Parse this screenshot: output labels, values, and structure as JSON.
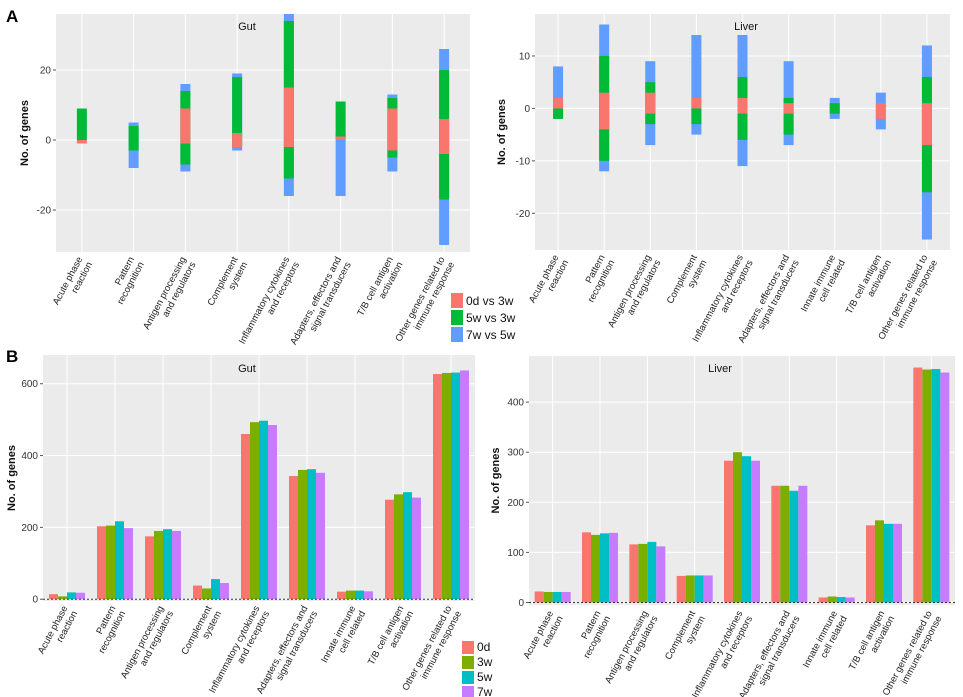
{
  "panels": {
    "a": "A",
    "b": "B"
  },
  "chart_data": [
    {
      "type": "bar",
      "subtype": "range",
      "title": "Gut",
      "ylabel": "No. of genes",
      "ylim": [
        -32,
        36
      ],
      "yticks": [
        -20,
        0,
        20
      ],
      "categories": [
        "Acute phase\nreaction",
        "Pattern\nrecognition",
        "Antigen processing\nand regulators",
        "Complement\nsystem",
        "Inflammatory cytokines\nand receptors",
        "Adapters, effectors and\nsignal transducers",
        "T/B cell antigen\nactivation",
        "Other genes related to\nimmune response"
      ],
      "legend": [
        "0d vs 3w",
        "5w vs 3w",
        "7w vs 5w"
      ],
      "colors": [
        "#f8766d",
        "#00ba38",
        "#619cff"
      ],
      "series": [
        {
          "name": "0d vs 3w",
          "ranges": [
            [
              -1,
              0
            ],
            null,
            [
              -1,
              9
            ],
            [
              -2,
              2
            ],
            [
              -2,
              15
            ],
            [
              0,
              1
            ],
            [
              -3,
              9
            ],
            [
              -4,
              6
            ]
          ]
        },
        {
          "name": "5w vs 3w",
          "ranges": [
            [
              0,
              9
            ],
            [
              -3,
              4
            ],
            [
              -7,
              14
            ],
            [
              -2,
              18
            ],
            [
              -11,
              34
            ],
            [
              0,
              11
            ],
            [
              -5,
              12
            ],
            [
              -17,
              20
            ]
          ]
        },
        {
          "name": "7w vs 5w",
          "ranges": [
            null,
            [
              -8,
              5
            ],
            [
              -9,
              16
            ],
            [
              -3,
              19
            ],
            [
              -16,
              36
            ],
            [
              -16,
              2
            ],
            [
              -9,
              13
            ],
            [
              -30,
              26
            ]
          ]
        }
      ]
    },
    {
      "type": "bar",
      "subtype": "range",
      "title": "Liver",
      "ylabel": "No. of genes",
      "ylim": [
        -27,
        18
      ],
      "yticks": [
        -20,
        -10,
        0,
        10
      ],
      "categories": [
        "Acute phase\nreaction",
        "Pattern\nrecognition",
        "Antigen processing\nand regulators",
        "Complement\nsystem",
        "Inflammatory cytokines\nand receptors",
        "Adapters, effectors and\nsignal transducers",
        "Innate immune\ncell related",
        "T/B cell antigen\nactivation",
        "Other genes related to\nimmune response"
      ],
      "legend": [
        "0d vs 3w",
        "5w vs 3w",
        "7w vs 5w"
      ],
      "colors": [
        "#f8766d",
        "#00ba38",
        "#619cff"
      ],
      "series": [
        {
          "name": "0d vs 3w",
          "ranges": [
            [
              0,
              2
            ],
            [
              -4,
              3
            ],
            [
              -1,
              3
            ],
            [
              0,
              2
            ],
            [
              -1,
              2
            ],
            [
              -1,
              1
            ],
            null,
            [
              -2,
              1
            ],
            [
              -7,
              1
            ]
          ]
        },
        {
          "name": "5w vs 3w",
          "ranges": [
            [
              -2,
              0
            ],
            [
              -10,
              10
            ],
            [
              -3,
              5
            ],
            [
              -3,
              0
            ],
            [
              -6,
              6
            ],
            [
              -5,
              2
            ],
            [
              -1,
              1
            ],
            null,
            [
              -16,
              6
            ]
          ]
        },
        {
          "name": "7w vs 5w",
          "ranges": [
            [
              -2,
              8
            ],
            [
              -12,
              16
            ],
            [
              -7,
              9
            ],
            [
              -5,
              14
            ],
            [
              -11,
              14
            ],
            [
              -7,
              9
            ],
            [
              -2,
              2
            ],
            [
              -4,
              3
            ],
            [
              -25,
              12
            ]
          ]
        }
      ]
    },
    {
      "type": "bar",
      "title": "Gut",
      "ylabel": "No. of genes",
      "ylim": [
        -5,
        680
      ],
      "yticks": [
        0,
        200,
        400,
        600
      ],
      "categories": [
        "Acute phase\nreaction",
        "Pattern\nrecognition",
        "Antigen processing\nand regulators",
        "Complement\nsystem",
        "Inflammatory cytokines\nand receptors",
        "Adapters, effectors and\nsignal transducers",
        "Innate immune\ncell related",
        "T/B cell antigen\nactivation",
        "Other genes related to\nimmune response"
      ],
      "legend": [
        "0d",
        "3w",
        "5w",
        "7w"
      ],
      "colors": [
        "#f8766d",
        "#7cae00",
        "#00bfc4",
        "#c77cff"
      ],
      "series": [
        {
          "name": "0d",
          "values": [
            14,
            203,
            175,
            38,
            460,
            343,
            21,
            277,
            627
          ]
        },
        {
          "name": "3w",
          "values": [
            8,
            205,
            190,
            30,
            493,
            360,
            24,
            292,
            630
          ]
        },
        {
          "name": "5w",
          "values": [
            19,
            217,
            195,
            56,
            497,
            362,
            24,
            298,
            631
          ]
        },
        {
          "name": "7w",
          "values": [
            18,
            198,
            190,
            45,
            485,
            352,
            22,
            283,
            637
          ]
        }
      ]
    },
    {
      "type": "bar",
      "title": "Liver",
      "ylabel": "No. of genes",
      "ylim": [
        -5,
        492
      ],
      "yticks": [
        0,
        100,
        200,
        300,
        400
      ],
      "categories": [
        "Acute phase\nreaction",
        "Pattern\nrecognition",
        "Antigen processing\nand regulators",
        "Complement\nsystem",
        "Inflammatory cytokines\nand receptors",
        "Adapters, effectors and\nsignal transducers",
        "Innate immune\ncell related",
        "T/B cell antigen\nactivation",
        "Other genes related to\nimmune response"
      ],
      "legend": [
        "0d",
        "3w",
        "5w",
        "7w"
      ],
      "colors": [
        "#f8766d",
        "#7cae00",
        "#00bfc4",
        "#c77cff"
      ],
      "series": [
        {
          "name": "0d",
          "values": [
            22,
            140,
            116,
            53,
            283,
            233,
            10,
            154,
            469
          ]
        },
        {
          "name": "3w",
          "values": [
            21,
            135,
            117,
            54,
            300,
            233,
            12,
            164,
            465
          ]
        },
        {
          "name": "5w",
          "values": [
            21,
            138,
            121,
            54,
            292,
            223,
            11,
            157,
            466
          ]
        },
        {
          "name": "7w",
          "values": [
            21,
            139,
            112,
            54,
            283,
            233,
            10,
            157,
            459
          ]
        }
      ]
    }
  ]
}
